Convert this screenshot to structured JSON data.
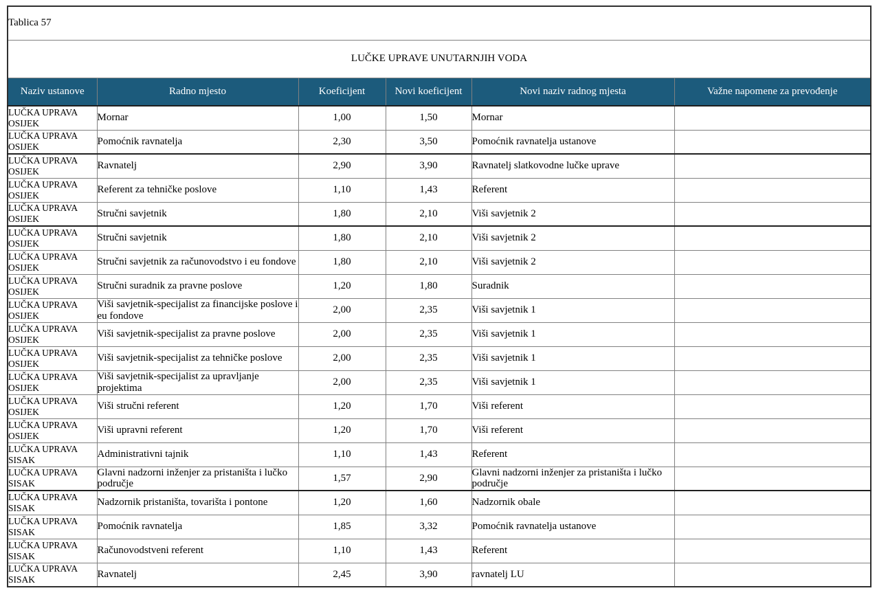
{
  "table_label": "Tablica 57",
  "title": "LUČKE UPRAVE UNUTARNJIH VODA",
  "columns": [
    "Naziv ustanove",
    "Radno mjesto",
    "Koeficijent",
    "Novi koeficijent",
    "Novi naziv radnog mjesta",
    "Važne napomene za prevođenje"
  ],
  "colors": {
    "header_bg": "#1c5b7c",
    "header_text": "#ffffff",
    "border_outer": "#2f2f2f",
    "border_inner": "#808080",
    "border_page_break": "#1f1f1f"
  },
  "rows": [
    {
      "ustanova": "LUČKA UPRAVA OSIJEK",
      "radno_mjesto": "Mornar",
      "koeficijent": "1,00",
      "novi_koeficijent": "1,50",
      "novi_naziv": "Mornar",
      "napomena": "",
      "thick_border_after": false
    },
    {
      "ustanova": "LUČKA UPRAVA OSIJEK",
      "radno_mjesto": "Pomoćnik ravnatelja",
      "koeficijent": "2,30",
      "novi_koeficijent": "3,50",
      "novi_naziv": "Pomoćnik ravnatelja ustanove",
      "napomena": "",
      "thick_border_after": true
    },
    {
      "ustanova": "LUČKA UPRAVA OSIJEK",
      "radno_mjesto": "Ravnatelj",
      "koeficijent": "2,90",
      "novi_koeficijent": "3,90",
      "novi_naziv": "Ravnatelj slatkovodne lučke uprave",
      "napomena": "",
      "thick_border_after": false
    },
    {
      "ustanova": "LUČKA UPRAVA OSIJEK",
      "radno_mjesto": "Referent za tehničke poslove",
      "koeficijent": "1,10",
      "novi_koeficijent": "1,43",
      "novi_naziv": "Referent",
      "napomena": "",
      "thick_border_after": false
    },
    {
      "ustanova": "LUČKA UPRAVA OSIJEK",
      "radno_mjesto": "Stručni savjetnik",
      "koeficijent": "1,80",
      "novi_koeficijent": "2,10",
      "novi_naziv": "Viši savjetnik 2",
      "napomena": "",
      "thick_border_after": true
    },
    {
      "ustanova": "LUČKA UPRAVA OSIJEK",
      "radno_mjesto": "Stručni savjetnik",
      "koeficijent": "1,80",
      "novi_koeficijent": "2,10",
      "novi_naziv": "Viši savjetnik 2",
      "napomena": "",
      "thick_border_after": false
    },
    {
      "ustanova": "LUČKA UPRAVA OSIJEK",
      "radno_mjesto": "Stručni savjetnik za računovodstvo i eu fondove",
      "koeficijent": "1,80",
      "novi_koeficijent": "2,10",
      "novi_naziv": "Viši savjetnik 2",
      "napomena": "",
      "thick_border_after": false
    },
    {
      "ustanova": "LUČKA UPRAVA OSIJEK",
      "radno_mjesto": "Stručni suradnik za pravne poslove",
      "koeficijent": "1,20",
      "novi_koeficijent": "1,80",
      "novi_naziv": "Suradnik",
      "napomena": "",
      "thick_border_after": false
    },
    {
      "ustanova": "LUČKA UPRAVA OSIJEK",
      "radno_mjesto": "Viši savjetnik-specijalist za financijske poslove i eu fondove",
      "koeficijent": "2,00",
      "novi_koeficijent": "2,35",
      "novi_naziv": "Viši savjetnik 1",
      "napomena": "",
      "thick_border_after": false
    },
    {
      "ustanova": "LUČKA UPRAVA OSIJEK",
      "radno_mjesto": "Viši savjetnik-specijalist za pravne poslove",
      "koeficijent": "2,00",
      "novi_koeficijent": "2,35",
      "novi_naziv": "Viši savjetnik 1",
      "napomena": "",
      "thick_border_after": false
    },
    {
      "ustanova": "LUČKA UPRAVA OSIJEK",
      "radno_mjesto": "Viši savjetnik-specijalist za tehničke poslove",
      "koeficijent": "2,00",
      "novi_koeficijent": "2,35",
      "novi_naziv": "Viši savjetnik 1",
      "napomena": "",
      "thick_border_after": false
    },
    {
      "ustanova": "LUČKA UPRAVA OSIJEK",
      "radno_mjesto": "Viši savjetnik-specijalist za upravljanje projektima",
      "koeficijent": "2,00",
      "novi_koeficijent": "2,35",
      "novi_naziv": "Viši savjetnik 1",
      "napomena": "",
      "thick_border_after": false
    },
    {
      "ustanova": "LUČKA UPRAVA OSIJEK",
      "radno_mjesto": "Viši stručni referent",
      "koeficijent": "1,20",
      "novi_koeficijent": "1,70",
      "novi_naziv": "Viši referent",
      "napomena": "",
      "thick_border_after": false
    },
    {
      "ustanova": "LUČKA UPRAVA OSIJEK",
      "radno_mjesto": "Viši upravni referent",
      "koeficijent": "1,20",
      "novi_koeficijent": "1,70",
      "novi_naziv": "Viši referent",
      "napomena": "",
      "thick_border_after": false
    },
    {
      "ustanova": "LUČKA UPRAVA SISAK",
      "radno_mjesto": "Administrativni tajnik",
      "koeficijent": "1,10",
      "novi_koeficijent": "1,43",
      "novi_naziv": "Referent",
      "napomena": "",
      "thick_border_after": false
    },
    {
      "ustanova": "LUČKA UPRAVA SISAK",
      "radno_mjesto": "Glavni nadzorni inženjer za pristaništa i lučko područje",
      "koeficijent": "1,57",
      "novi_koeficijent": "2,90",
      "novi_naziv": "Glavni nadzorni inženjer za pristaništa i lučko područje",
      "napomena": "",
      "thick_border_after": true
    },
    {
      "ustanova": "LUČKA UPRAVA SISAK",
      "radno_mjesto": "Nadzornik pristaništa, tovarišta i pontone",
      "koeficijent": "1,20",
      "novi_koeficijent": "1,60",
      "novi_naziv": "Nadzornik obale",
      "napomena": "",
      "thick_border_after": false
    },
    {
      "ustanova": "LUČKA UPRAVA SISAK",
      "radno_mjesto": "Pomoćnik ravnatelja",
      "koeficijent": "1,85",
      "novi_koeficijent": "3,32",
      "novi_naziv": "Pomoćnik ravnatelja ustanove",
      "napomena": "",
      "thick_border_after": false
    },
    {
      "ustanova": "LUČKA UPRAVA SISAK",
      "radno_mjesto": "Računovodstveni referent",
      "koeficijent": "1,10",
      "novi_koeficijent": "1,43",
      "novi_naziv": "Referent",
      "napomena": "",
      "thick_border_after": false
    },
    {
      "ustanova": "LUČKA UPRAVA SISAK",
      "radno_mjesto": "Ravnatelj",
      "koeficijent": "2,45",
      "novi_koeficijent": "3,90",
      "novi_naziv": "ravnatelj LU",
      "napomena": "",
      "thick_border_after": false
    }
  ]
}
